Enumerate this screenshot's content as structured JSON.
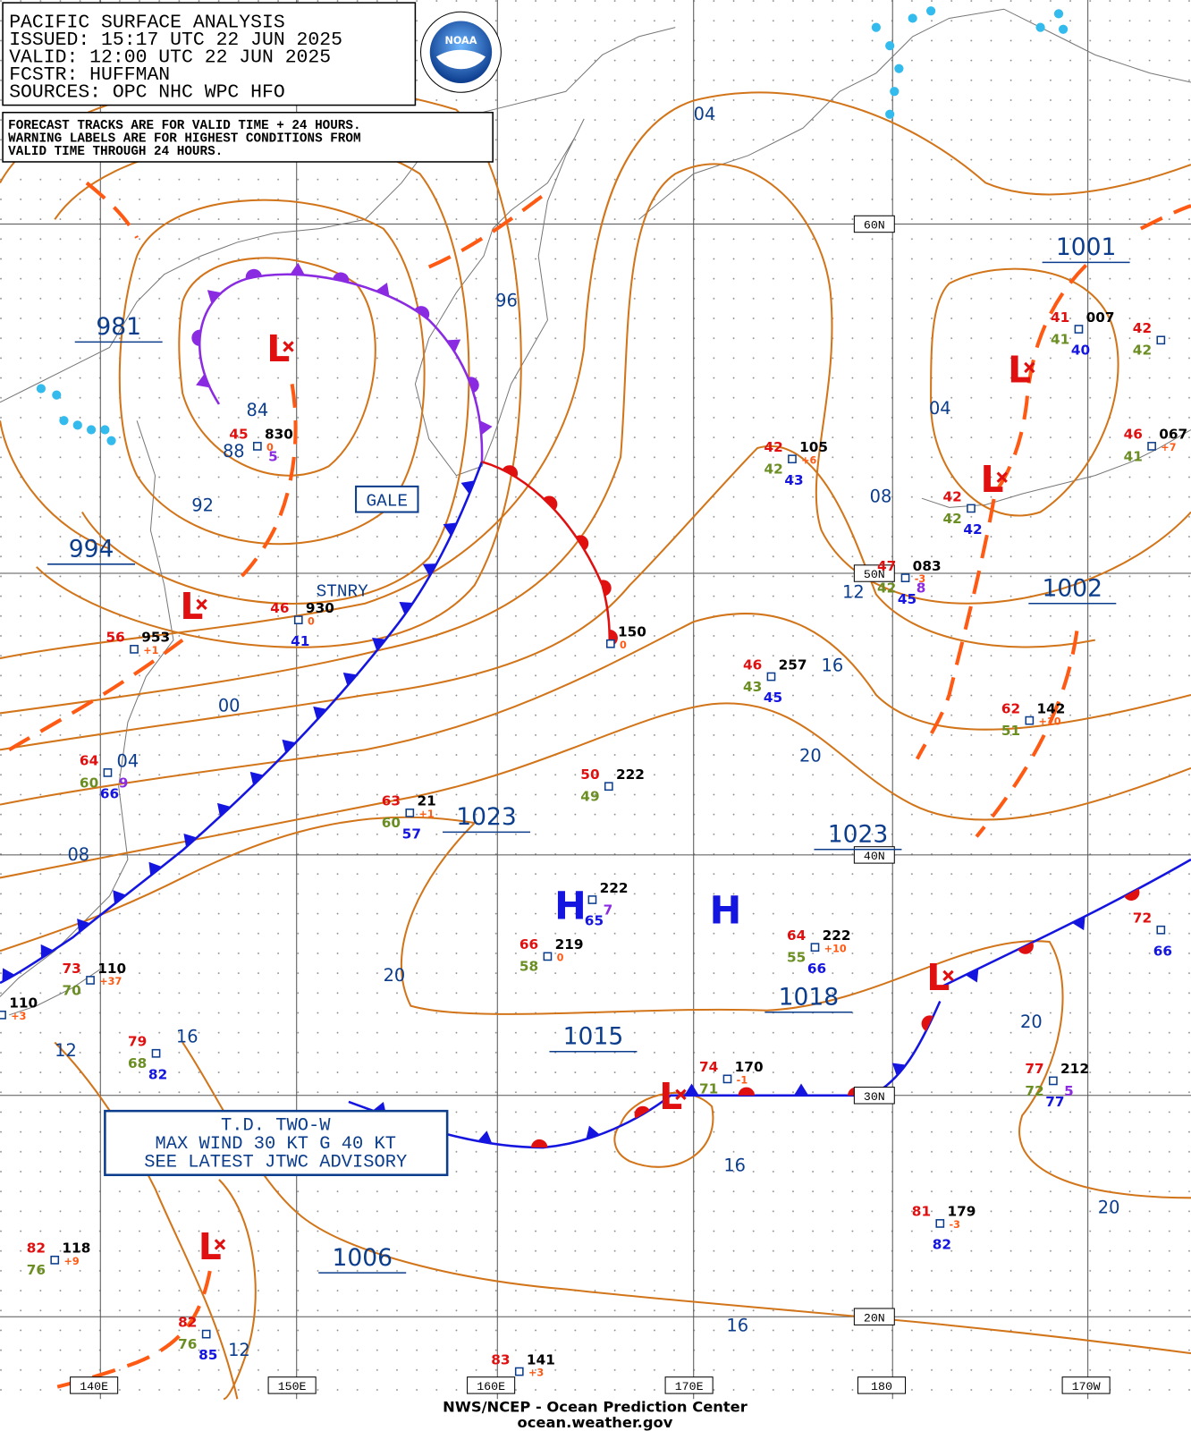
{
  "header": {
    "lines": [
      "PACIFIC SURFACE ANALYSIS",
      "ISSUED: 15:17 UTC 22 JUN 2025",
      "VALID:  12:00 UTC 22 JUN 2025",
      "FCSTR:  HUFFMAN",
      "SOURCES: OPC NHC WPC HFO"
    ],
    "logo": "NOAA"
  },
  "note": {
    "lines": [
      "FORECAST TRACKS ARE FOR VALID TIME + 24 HOURS.",
      "WARNING LABELS ARE FOR HIGHEST CONDITIONS FROM",
      "VALID TIME THROUGH 24 HOURS."
    ]
  },
  "latitude_labels": [
    "60N",
    "50N",
    "40N",
    "30N",
    "20N"
  ],
  "longitude_labels": [
    "140E",
    "150E",
    "160E",
    "170E",
    "180",
    "170W"
  ],
  "isobar_labels": [
    "981",
    "994",
    "1023",
    "1023",
    "1001",
    "1002",
    "1018",
    "1015",
    "1006",
    "04",
    "96",
    "84",
    "88",
    "92",
    "04",
    "08",
    "12",
    "16",
    "20",
    "00",
    "04",
    "08",
    "20",
    "16",
    "12",
    "20",
    "16",
    "20",
    "16",
    "12"
  ],
  "centers": [
    "L",
    "L",
    "L",
    "L",
    "H",
    "H",
    "L",
    "L",
    "L"
  ],
  "front_labels": [
    "STNRY"
  ],
  "warning_labels": [
    "GALE"
  ],
  "tropical_box": {
    "lines": [
      "T.D. TWO-W",
      "MAX WIND 30 KT G 40 KT",
      "SEE LATEST JTWC ADVISORY"
    ]
  },
  "stations": [
    {
      "temperature": "45",
      "pressure": "830",
      "visibility": "5",
      "tendency": "0"
    },
    {
      "temperature": "56",
      "pressure": "953",
      "tendency": "+1"
    },
    {
      "temperature": "46",
      "pressure": "930",
      "sea_temp": "41",
      "tendency": "0"
    },
    {
      "temperature": "42",
      "pressure": "105",
      "dewpoint": "42",
      "sea_temp": "43",
      "tendency": "+6"
    },
    {
      "temperature": "42",
      "dewpoint": "42",
      "sea_temp": "42"
    },
    {
      "temperature": "41",
      "pressure": "007",
      "dewpoint": "41",
      "sea_temp": "40"
    },
    {
      "temperature": "42",
      "dewpoint": "42"
    },
    {
      "temperature": "46",
      "pressure": "067",
      "dewpoint": "41",
      "tendency": "+7"
    },
    {
      "temperature": "47",
      "pressure": "083",
      "dewpoint": "42",
      "sea_temp": "45",
      "visibility": "8",
      "tendency": "-3"
    },
    {
      "pressure": "150",
      "tendency": "0"
    },
    {
      "temperature": "46",
      "pressure": "257",
      "dewpoint": "43",
      "sea_temp": "45"
    },
    {
      "temperature": "62",
      "pressure": "142",
      "dewpoint": "51",
      "tendency": "+10"
    },
    {
      "temperature": "50",
      "pressure": "222",
      "dewpoint": "49"
    },
    {
      "temperature": "63",
      "pressure": "21",
      "dewpoint": "60",
      "sea_temp": "57",
      "tendency": "+1"
    },
    {
      "temperature": "64",
      "dewpoint": "60",
      "sea_temp": "66",
      "visibility": "9"
    },
    {
      "pressure": "222",
      "sea_temp": "65",
      "visibility": "7"
    },
    {
      "temperature": "66",
      "pressure": "219",
      "dewpoint": "58",
      "tendency": "0"
    },
    {
      "temperature": "64",
      "pressure": "222",
      "dewpoint": "55",
      "sea_temp": "66",
      "tendency": "+10"
    },
    {
      "temperature": "72",
      "sea_temp": "66"
    },
    {
      "temperature": "73",
      "pressure": "110",
      "dewpoint": "70",
      "tendency": "+37"
    },
    {
      "pressure": "110",
      "tendency": "+3"
    },
    {
      "temperature": "79",
      "dewpoint": "68",
      "sea_temp": "82"
    },
    {
      "temperature": "74",
      "pressure": "170",
      "dewpoint": "71",
      "tendency": "-1"
    },
    {
      "temperature": "77",
      "pressure": "212",
      "dewpoint": "72",
      "sea_temp": "77",
      "visibility": "5"
    },
    {
      "temperature": "81",
      "pressure": "179",
      "sea_temp": "82",
      "tendency": "-3"
    },
    {
      "temperature": "82",
      "pressure": "118",
      "dewpoint": "76",
      "tendency": "+9"
    },
    {
      "temperature": "82",
      "dewpoint": "76",
      "sea_temp": "85"
    },
    {
      "temperature": "83",
      "pressure": "141",
      "tendency": "+3"
    }
  ],
  "footer": {
    "lines": [
      "NWS/NCEP - Ocean Prediction Center",
      "ocean.weather.gov"
    ]
  }
}
